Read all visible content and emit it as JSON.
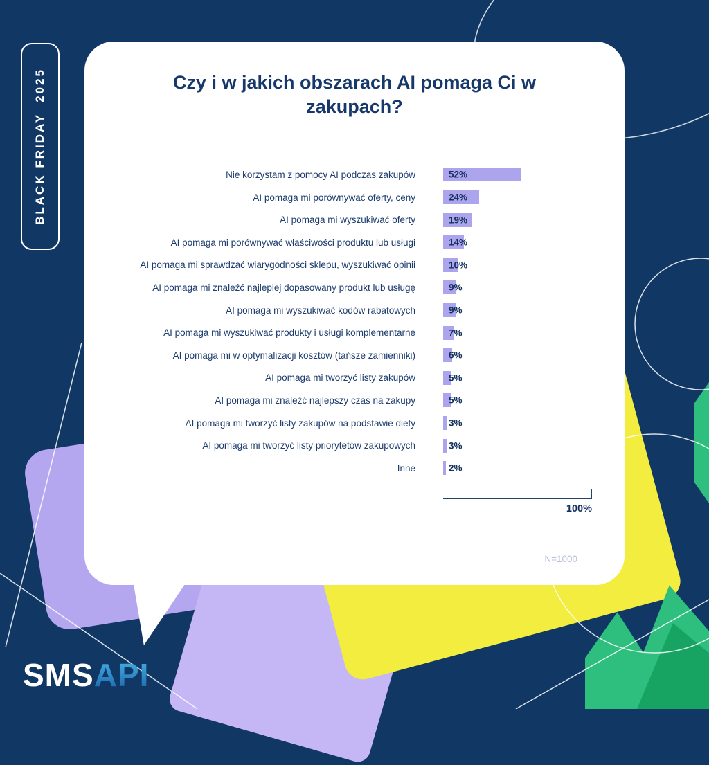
{
  "badge": {
    "label": "BLACK FRIDAY  2025"
  },
  "card": {
    "title": "Czy i w jakich obszarach AI pomaga Ci w zakupach?",
    "axis_max_label": "100%",
    "sample_note": "N=1000"
  },
  "chart_data": {
    "type": "bar",
    "orientation": "horizontal",
    "title": "Czy i w jakich obszarach AI pomaga Ci w zakupach?",
    "categories": [
      "Nie korzystam z pomocy AI podczas zakupów",
      "AI pomaga mi porównywać oferty, ceny",
      "AI pomaga mi wyszukiwać oferty",
      "AI pomaga mi porównywać właściwości produktu lub usługi",
      "AI pomaga mi sprawdzać wiarygodności sklepu, wyszukiwać opinii",
      "AI pomaga mi znaleźć najlepiej dopasowany produkt lub usługę",
      "AI pomaga mi wyszukiwać kodów rabatowych",
      "AI pomaga mi wyszukiwać produkty i usługi komplementarne",
      "AI pomaga mi w optymalizacji kosztów (tańsze zamienniki)",
      "AI pomaga mi tworzyć listy zakupów",
      "AI pomaga mi znaleźć najlepszy czas na zakupy",
      "AI pomaga mi tworzyć listy zakupów na podstawie diety",
      "AI pomaga mi tworzyć listy priorytetów zakupowych",
      "Inne"
    ],
    "values": [
      52,
      24,
      19,
      14,
      10,
      9,
      9,
      7,
      6,
      5,
      5,
      3,
      3,
      2
    ],
    "value_labels": [
      "52%",
      "24%",
      "19%",
      "14%",
      "10%",
      "9%",
      "9%",
      "7%",
      "6%",
      "5%",
      "5%",
      "3%",
      "3%",
      "2%"
    ],
    "xlim": [
      0,
      100
    ],
    "axis_max_label": "100%",
    "bar_color": "#ACA4EC",
    "grid": false,
    "legend": "none",
    "sample_note": "N=1000"
  },
  "footer": {
    "logo_sms": "SMS",
    "logo_api": "API"
  },
  "colors": {
    "background": "#113765",
    "card": "#FFFFFF",
    "bar": "#ACA4EC",
    "title_text": "#17386B",
    "label_text": "#1C3C6E",
    "accent_yellow": "#F2ED3F",
    "accent_green": "#2EBE7E",
    "accent_green_dark": "#17A463",
    "accent_lavender": "#B5A6F0",
    "accent_light_purple": "#C5B6F5",
    "sample_note_color": "#B9BFD9"
  }
}
